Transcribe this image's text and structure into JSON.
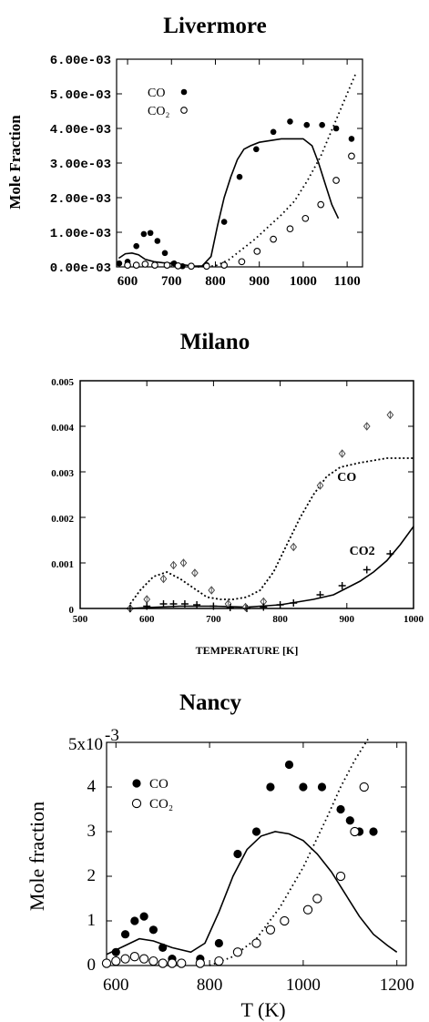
{
  "chart_data": [
    {
      "type": "scatter",
      "title": "Livermore",
      "xlabel": "",
      "ylabel": "Mole Fraction",
      "xlim": [
        575,
        1135
      ],
      "ylim": [
        0,
        0.006
      ],
      "x_ticks": [
        "600",
        "700",
        "800",
        "900",
        "1000",
        "1100"
      ],
      "y_ticks": [
        "0.00e-03",
        "1.00e-03",
        "2.00e-03",
        "3.00e-03",
        "4.00e-03",
        "5.00e-03",
        "6.00e-03"
      ],
      "grid": false,
      "legend_position": "top-left",
      "legend": [
        {
          "label": "CO",
          "marker": "filled-circle"
        },
        {
          "label": "CO₂",
          "marker": "open-circle"
        }
      ],
      "series": [
        {
          "name": "CO",
          "kind": "points",
          "marker": "filled-circle",
          "x": [
            581,
            600,
            620,
            637,
            652,
            668,
            685,
            706,
            725,
            745,
            780,
            820,
            855,
            893,
            932,
            970,
            1008,
            1043,
            1075,
            1110
          ],
          "y": [
            0.0001,
            0.00015,
            0.0006,
            0.00095,
            0.00098,
            0.00075,
            0.0004,
            0.0001,
            2e-05,
            2e-05,
            5e-05,
            0.0013,
            0.0026,
            0.0034,
            0.0039,
            0.0042,
            0.0041,
            0.0041,
            0.004,
            0.0037
          ]
        },
        {
          "name": "CO₂",
          "kind": "points",
          "marker": "open-circle",
          "x": [
            600,
            620,
            640,
            662,
            690,
            715,
            745,
            780,
            820,
            860,
            895,
            932,
            970,
            1005,
            1040,
            1075,
            1110
          ],
          "y": [
            5e-05,
            5e-05,
            8e-05,
            5e-05,
            5e-05,
            3e-05,
            2e-05,
            2e-05,
            5e-05,
            0.00015,
            0.00045,
            0.0008,
            0.0011,
            0.0014,
            0.0018,
            0.0025,
            0.0032
          ]
        },
        {
          "kind": "line",
          "style": "solid",
          "x": [
            580,
            595,
            610,
            625,
            640,
            660,
            680,
            700,
            720,
            740,
            755,
            770,
            790,
            805,
            820,
            835,
            850,
            865,
            880,
            900,
            950,
            1000,
            1020,
            1035,
            1050,
            1065,
            1080
          ],
          "y": [
            0.00025,
            0.00038,
            0.0004,
            0.00035,
            0.00022,
            0.00015,
            0.00012,
            0.0001,
            7e-05,
            4e-05,
            2e-05,
            3e-05,
            0.0003,
            0.0012,
            0.002,
            0.0026,
            0.0031,
            0.0034,
            0.0035,
            0.0036,
            0.0037,
            0.0037,
            0.0035,
            0.003,
            0.0024,
            0.0018,
            0.0014
          ]
        },
        {
          "kind": "line",
          "style": "dotted",
          "x": [
            760,
            800,
            830,
            860,
            890,
            920,
            950,
            980,
            1010,
            1040,
            1060,
            1080,
            1100,
            1120
          ],
          "y": [
            0,
            3e-05,
            0.0002,
            0.0005,
            0.0008,
            0.00115,
            0.0015,
            0.0019,
            0.0025,
            0.0032,
            0.0038,
            0.0044,
            0.005,
            0.0056
          ]
        }
      ]
    },
    {
      "type": "scatter",
      "title": "Milano",
      "xlabel": "TEMPERATURE [K]",
      "ylabel": "",
      "xlim": [
        500,
        1000
      ],
      "ylim": [
        0,
        0.005
      ],
      "x_ticks": [
        "500",
        "600",
        "700",
        "800",
        "900",
        "1000"
      ],
      "y_ticks": [
        "0",
        "0.001",
        "0.002",
        "0.003",
        "0.004",
        "0.005"
      ],
      "grid": false,
      "annotations": [
        {
          "text": "CO",
          "at": [
            900,
            0.0028
          ]
        },
        {
          "text": "CO2",
          "at": [
            923,
            0.00118
          ]
        }
      ],
      "series": [
        {
          "name": "CO",
          "kind": "points",
          "marker": "open-diamond",
          "x": [
            575,
            600,
            625,
            640,
            655,
            672,
            697,
            722,
            748,
            775,
            820,
            860,
            893,
            930,
            965
          ],
          "y": [
            0,
            0.0002,
            0.00065,
            0.00095,
            0.001,
            0.00078,
            0.0004,
            0.0001,
            3e-05,
            0.00015,
            0.00135,
            0.0027,
            0.0034,
            0.004,
            0.00425
          ]
        },
        {
          "name": "CO2",
          "kind": "points",
          "marker": "plus",
          "x": [
            575,
            600,
            625,
            640,
            657,
            675,
            700,
            725,
            750,
            775,
            800,
            820,
            860,
            893,
            930,
            965
          ],
          "y": [
            0,
            5e-05,
            0.0001,
            0.0001,
            0.0001,
            8e-05,
            5e-05,
            2e-05,
            0,
            3e-05,
            8e-05,
            0.00012,
            0.0003,
            0.0005,
            0.00085,
            0.0012
          ]
        },
        {
          "kind": "line",
          "style": "dotted",
          "x": [
            575,
            590,
            610,
            630,
            650,
            670,
            690,
            710,
            730,
            750,
            770,
            790,
            810,
            830,
            850,
            870,
            890,
            920,
            960,
            1000
          ],
          "y": [
            0.0001,
            0.0004,
            0.0007,
            0.0008,
            0.00065,
            0.00045,
            0.00025,
            0.0002,
            0.0002,
            0.00025,
            0.0004,
            0.0008,
            0.0014,
            0.002,
            0.0025,
            0.0029,
            0.0031,
            0.0032,
            0.0033,
            0.0033
          ]
        },
        {
          "kind": "line",
          "style": "solid",
          "x": [
            575,
            600,
            650,
            700,
            750,
            800,
            850,
            880,
            900,
            920,
            940,
            960,
            980,
            1000
          ],
          "y": [
            0,
            2e-05,
            5e-05,
            5e-05,
            3e-05,
            8e-05,
            0.0002,
            0.0003,
            0.00045,
            0.0006,
            0.0008,
            0.00105,
            0.0014,
            0.0018
          ]
        }
      ]
    },
    {
      "type": "scatter",
      "title": "Nancy",
      "xlabel": "T (K)",
      "ylabel": "Mole fraction",
      "xlim": [
        580,
        1220
      ],
      "ylim": [
        0,
        5
      ],
      "y_unit_label": "5x10",
      "y_unit_exponent": "-3",
      "x_ticks": [
        "600",
        "800",
        "1000",
        "1200"
      ],
      "y_ticks": [
        "0",
        "1",
        "2",
        "3",
        "4"
      ],
      "grid": false,
      "legend_position": "top-left",
      "legend": [
        {
          "label": "CO",
          "marker": "filled-circle"
        },
        {
          "label": "CO₂",
          "marker": "open-circle"
        }
      ],
      "series": [
        {
          "name": "CO",
          "kind": "points",
          "marker": "filled-circle",
          "x": [
            600,
            620,
            640,
            660,
            680,
            700,
            720,
            740,
            780,
            820,
            860,
            900,
            930,
            970,
            1000,
            1040,
            1080,
            1100,
            1120,
            1150
          ],
          "y": [
            0.3,
            0.7,
            1.0,
            1.1,
            0.8,
            0.4,
            0.15,
            0.05,
            0.15,
            0.5,
            2.5,
            3.0,
            4.0,
            4.5,
            4.0,
            4.0,
            3.5,
            3.25,
            3.0,
            3.0
          ]
        },
        {
          "name": "CO₂",
          "kind": "points",
          "marker": "open-circle",
          "x": [
            580,
            600,
            620,
            640,
            660,
            680,
            700,
            720,
            740,
            780,
            820,
            860,
            900,
            930,
            960,
            1010,
            1030,
            1080,
            1110,
            1130
          ],
          "y": [
            0.05,
            0.1,
            0.15,
            0.2,
            0.15,
            0.1,
            0.05,
            0.05,
            0.05,
            0.05,
            0.1,
            0.3,
            0.5,
            0.8,
            1.0,
            1.25,
            1.5,
            2.0,
            3.0,
            4.0
          ]
        },
        {
          "kind": "line",
          "style": "solid",
          "x": [
            580,
            620,
            650,
            680,
            720,
            760,
            790,
            820,
            850,
            880,
            910,
            940,
            970,
            1000,
            1030,
            1060,
            1090,
            1120,
            1150,
            1180,
            1200
          ],
          "y": [
            0.25,
            0.45,
            0.6,
            0.55,
            0.4,
            0.3,
            0.5,
            1.2,
            2.0,
            2.6,
            2.9,
            3.0,
            2.95,
            2.8,
            2.5,
            2.1,
            1.6,
            1.1,
            0.7,
            0.45,
            0.3
          ]
        },
        {
          "kind": "line",
          "style": "dotted",
          "x": [
            800,
            850,
            900,
            950,
            1000,
            1050,
            1080,
            1110,
            1140
          ],
          "y": [
            0,
            0.2,
            0.6,
            1.3,
            2.2,
            3.3,
            4.0,
            4.6,
            5.1
          ]
        }
      ]
    }
  ]
}
